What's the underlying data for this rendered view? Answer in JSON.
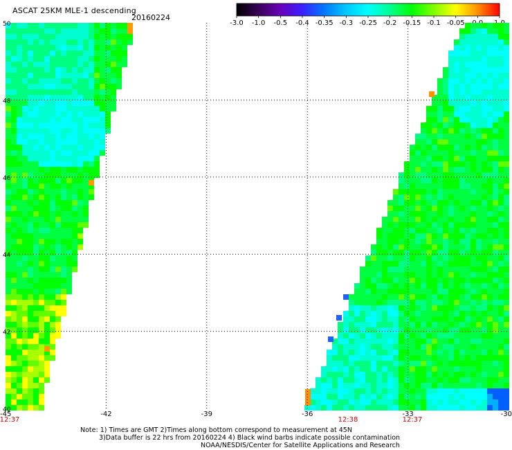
{
  "header": {
    "title": "ASCAT 25KM MLE-1 descending",
    "date": "20160224"
  },
  "colorbar": {
    "labels": [
      "-3.0",
      "-1.0",
      "-0.5",
      "-0.4",
      "-0.35",
      "-0.3",
      "-0.25",
      "-0.2",
      "-0.15",
      "-0.1",
      "-0.05",
      "0.0",
      "1.0"
    ],
    "colors": [
      "#000000",
      "#3a0058",
      "#6a00b8",
      "#3a20ff",
      "#0078ff",
      "#00c8ff",
      "#00ffff",
      "#00ff90",
      "#00ff00",
      "#80ff00",
      "#ffff00",
      "#ff9000",
      "#ff0000"
    ]
  },
  "axes": {
    "lat_labels": [
      "50",
      "48",
      "46",
      "44",
      "42",
      "40"
    ],
    "lon_labels": [
      "-45",
      "-42",
      "-39",
      "-36",
      "-33",
      "-30"
    ],
    "time_labels": [
      "12:37",
      "12:38",
      "12:37"
    ],
    "time_color": "#cc0000"
  },
  "notes": {
    "line1": "Note: 1) Times are GMT 2)Times along bottom correspond to measurement at 45N",
    "line2": "3)Data buffer is 22 hrs from 20160224 4) Black wind barbs indicate possible contamination",
    "line3": "NOAA/NESDIS/Center for Satellite Applications and Research"
  }
}
